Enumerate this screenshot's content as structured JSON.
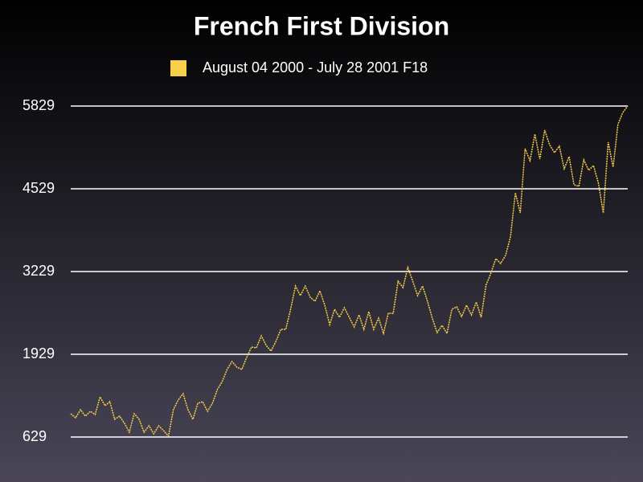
{
  "chart_data": {
    "type": "line",
    "title": "French First Division",
    "series": [
      {
        "name": "August 04 2000  - July 28 2001 F18",
        "color": "#f7cf4a",
        "values": [
          995,
          932,
          1058,
          957,
          1033,
          982,
          1260,
          1121,
          1184,
          907,
          957,
          844,
          705,
          995,
          907,
          705,
          806,
          679,
          806,
          730,
          642,
          1058,
          1210,
          1311,
          1058,
          907,
          1159,
          1184,
          1033,
          1159,
          1374,
          1500,
          1689,
          1815,
          1727,
          1689,
          1878,
          2043,
          2030,
          2219,
          2068,
          1979,
          2131,
          2320,
          2320,
          2636,
          3002,
          2850,
          3002,
          2825,
          2762,
          2926,
          2699,
          2396,
          2636,
          2510,
          2661,
          2510,
          2358,
          2547,
          2320,
          2598,
          2320,
          2497,
          2257,
          2573,
          2573,
          3077,
          2977,
          3292,
          3077,
          2850,
          3002,
          2762,
          2497,
          2270,
          2383,
          2257,
          2636,
          2674,
          2522,
          2699,
          2547,
          2749,
          2510,
          3014,
          3204,
          3431,
          3355,
          3481,
          3772,
          4466,
          4150,
          5160,
          4971,
          5387,
          4996,
          5450,
          5223,
          5097,
          5198,
          4844,
          5034,
          4592,
          4567,
          4983,
          4819,
          4895,
          4617,
          4150,
          5261,
          4870,
          5539,
          5728,
          5829
        ]
      }
    ],
    "ylim": [
      629,
      5829
    ],
    "yticks": [
      629,
      1929,
      3229,
      4529,
      5829
    ],
    "grid": true
  }
}
